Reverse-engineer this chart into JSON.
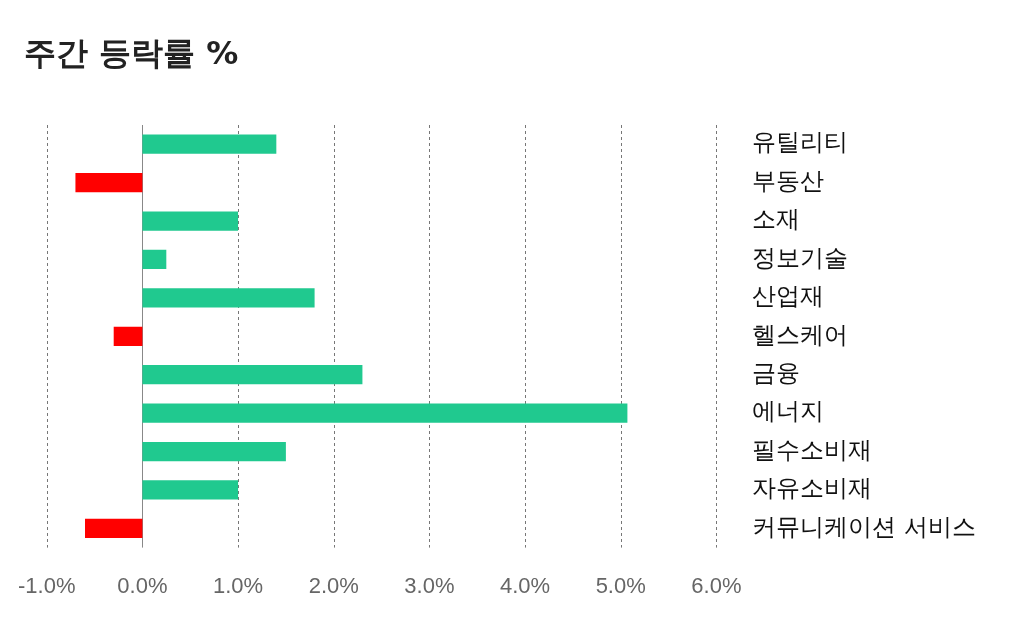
{
  "chart_data": {
    "type": "bar",
    "title": "주간 등락률 %",
    "orientation": "horizontal",
    "categories": [
      "유틸리티",
      "부동산",
      "소재",
      "정보기술",
      "산업재",
      "헬스케어",
      "금융",
      "에너지",
      "필수소비재",
      "자유소비재",
      "커뮤니케이션 서비스"
    ],
    "values": [
      1.4,
      -0.7,
      1.0,
      0.25,
      1.8,
      -0.3,
      2.3,
      5.07,
      1.5,
      1.0,
      -0.6
    ],
    "colors": [
      "#20c98f",
      "#ff0000",
      "#20c98f",
      "#20c98f",
      "#20c98f",
      "#ff0000",
      "#20c98f",
      "#20c98f",
      "#20c98f",
      "#20c98f",
      "#ff0000"
    ],
    "xlim": [
      -1,
      6
    ],
    "xticks": [
      {
        "value": -1,
        "label": "-1.0%"
      },
      {
        "value": 0,
        "label": "0.0%"
      },
      {
        "value": 1,
        "label": "1.0%"
      },
      {
        "value": 2,
        "label": "2.0%"
      },
      {
        "value": 3,
        "label": "3.0%"
      },
      {
        "value": 4,
        "label": "4.0%"
      },
      {
        "value": 5,
        "label": "5.0%"
      },
      {
        "value": 6,
        "label": "6.0%"
      }
    ],
    "grid": "x",
    "legend": false
  }
}
